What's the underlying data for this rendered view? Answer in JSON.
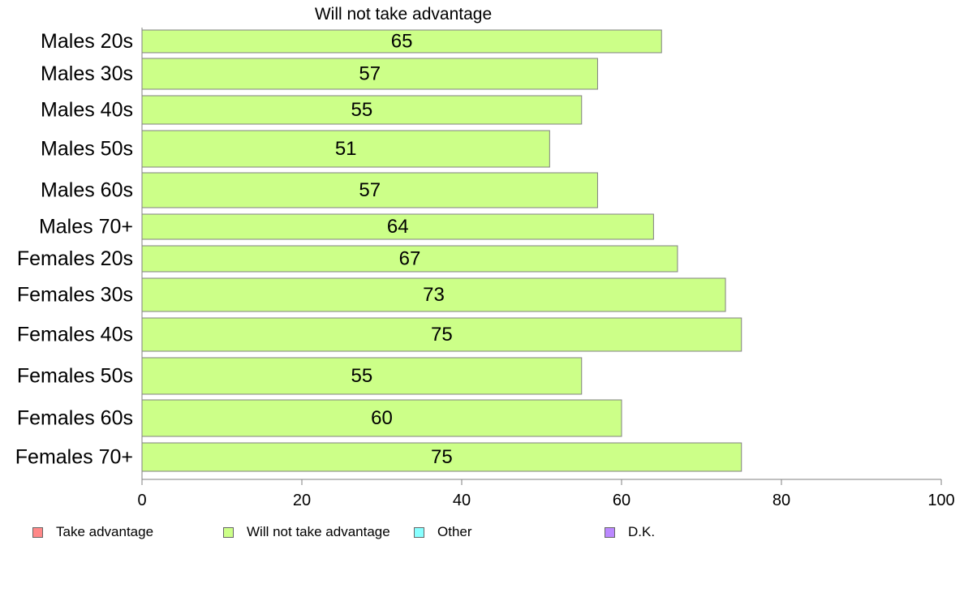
{
  "chart_data": {
    "type": "bar",
    "orientation": "horizontal",
    "title": "Will not take advantage",
    "categories": [
      "Males 20s",
      "Males 30s",
      "Males 40s",
      "Males 50s",
      "Males 60s",
      "Males 70+",
      "Females 20s",
      "Females 30s",
      "Females 40s",
      "Females 50s",
      "Females 60s",
      "Females 70+"
    ],
    "series": [
      {
        "name": "Will not take advantage",
        "color": "#ccff88",
        "values": [
          65,
          57,
          55,
          51,
          57,
          64,
          67,
          73,
          75,
          55,
          60,
          75
        ]
      }
    ],
    "xlim": [
      0,
      100
    ],
    "xticks": [
      "0",
      "20",
      "40",
      "60",
      "80",
      "100"
    ],
    "grid": false,
    "legend_position": "bottom",
    "legend": [
      {
        "label": "Take advantage",
        "color": "#ff8888"
      },
      {
        "label": "Will not take advantage",
        "color": "#ccff88"
      },
      {
        "label": "Other",
        "color": "#88ffff"
      },
      {
        "label": "D.K.",
        "color": "#bb88ff"
      }
    ]
  }
}
